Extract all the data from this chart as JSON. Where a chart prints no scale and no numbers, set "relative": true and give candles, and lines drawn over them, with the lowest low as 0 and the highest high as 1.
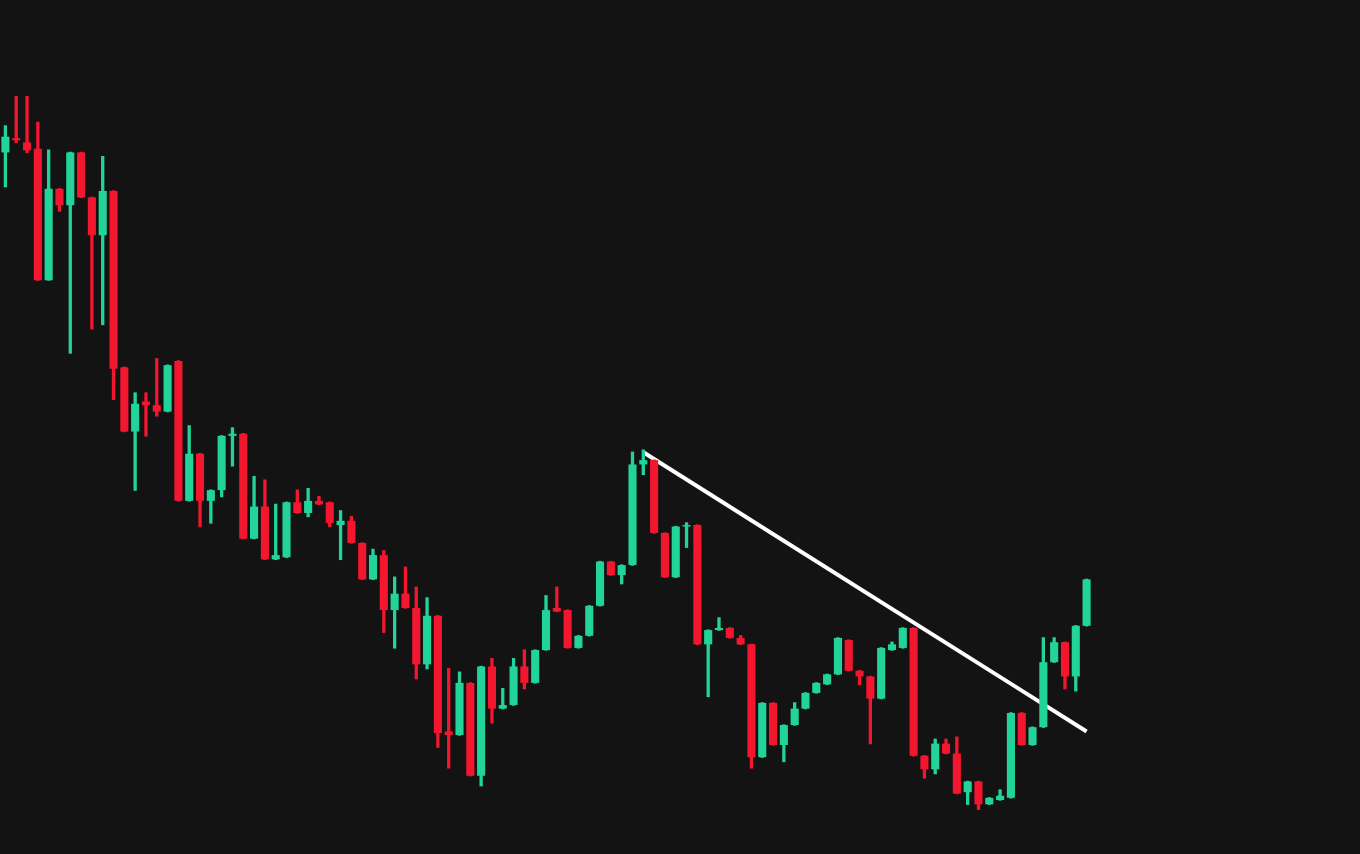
{
  "chart_data": {
    "type": "candlestick",
    "relative": true,
    "legend": false,
    "tick_labels": false,
    "categories": [
      null,
      null,
      null,
      null,
      null,
      null,
      null,
      null,
      null,
      null,
      null,
      null,
      null,
      null,
      null,
      null,
      null,
      null,
      null,
      null,
      null,
      null,
      null,
      null,
      null,
      null,
      null,
      null,
      null,
      null,
      null,
      null,
      null,
      null,
      null,
      null,
      null,
      null,
      null,
      null,
      null,
      null,
      null,
      null,
      null,
      null,
      null,
      null,
      null,
      null,
      null,
      null,
      null,
      null,
      null,
      null,
      null,
      null,
      null,
      null,
      null,
      null,
      null,
      null,
      null,
      null,
      null,
      null,
      null,
      null,
      null,
      null,
      null,
      null,
      null,
      null,
      null,
      null,
      null,
      null,
      null,
      null,
      null,
      null,
      null,
      null,
      null,
      null,
      null,
      null,
      null,
      null,
      null,
      null,
      null,
      null,
      null,
      null,
      null,
      null,
      null
    ],
    "ohlc": [
      [
        0.921,
        0.958,
        0.873,
        0.943
      ],
      [
        0.941,
        1.0,
        0.935,
        0.938
      ],
      [
        0.935,
        1.0,
        0.921,
        0.924
      ],
      [
        0.926,
        0.963,
        0.742,
        0.742
      ],
      [
        0.742,
        0.924,
        0.742,
        0.87
      ],
      [
        0.87,
        0.87,
        0.839,
        0.847
      ],
      [
        0.847,
        0.921,
        0.64,
        0.921
      ],
      [
        0.921,
        0.921,
        0.858,
        0.858
      ],
      [
        0.858,
        0.858,
        0.674,
        0.805
      ],
      [
        0.805,
        0.915,
        0.68,
        0.867
      ],
      [
        0.867,
        0.867,
        0.575,
        0.618
      ],
      [
        0.62,
        0.62,
        0.53,
        0.53
      ],
      [
        0.53,
        0.584,
        0.448,
        0.569
      ],
      [
        0.572,
        0.584,
        0.524,
        0.567
      ],
      [
        0.567,
        0.632,
        0.552,
        0.558
      ],
      [
        0.558,
        0.623,
        0.558,
        0.623
      ],
      [
        0.629,
        0.629,
        0.433,
        0.433
      ],
      [
        0.433,
        0.538,
        0.433,
        0.499
      ],
      [
        0.499,
        0.499,
        0.397,
        0.433
      ],
      [
        0.433,
        0.448,
        0.402,
        0.448
      ],
      [
        0.448,
        0.524,
        0.439,
        0.524
      ],
      [
        0.524,
        0.535,
        0.482,
        0.527
      ],
      [
        0.527,
        0.527,
        0.38,
        0.38
      ],
      [
        0.38,
        0.467,
        0.38,
        0.425
      ],
      [
        0.425,
        0.462,
        0.351,
        0.351
      ],
      [
        0.351,
        0.428,
        0.351,
        0.357
      ],
      [
        0.354,
        0.431,
        0.354,
        0.431
      ],
      [
        0.431,
        0.448,
        0.416,
        0.416
      ],
      [
        0.416,
        0.45,
        0.411,
        0.433
      ],
      [
        0.433,
        0.439,
        0.428,
        0.428
      ],
      [
        0.431,
        0.431,
        0.397,
        0.402
      ],
      [
        0.399,
        0.419,
        0.351,
        0.405
      ],
      [
        0.405,
        0.411,
        0.374,
        0.374
      ],
      [
        0.374,
        0.374,
        0.323,
        0.323
      ],
      [
        0.323,
        0.365,
        0.323,
        0.357
      ],
      [
        0.357,
        0.363,
        0.249,
        0.28
      ],
      [
        0.28,
        0.326,
        0.227,
        0.303
      ],
      [
        0.303,
        0.34,
        0.283,
        0.283
      ],
      [
        0.283,
        0.312,
        0.184,
        0.204
      ],
      [
        0.204,
        0.297,
        0.198,
        0.272
      ],
      [
        0.272,
        0.272,
        0.088,
        0.108
      ],
      [
        0.11,
        0.198,
        0.059,
        0.105
      ],
      [
        0.105,
        0.193,
        0.105,
        0.178
      ],
      [
        0.178,
        0.178,
        0.048,
        0.048
      ],
      [
        0.048,
        0.201,
        0.034,
        0.201
      ],
      [
        0.201,
        0.212,
        0.122,
        0.142
      ],
      [
        0.142,
        0.17,
        0.142,
        0.147
      ],
      [
        0.147,
        0.212,
        0.147,
        0.201
      ],
      [
        0.201,
        0.224,
        0.17,
        0.178
      ],
      [
        0.178,
        0.224,
        0.178,
        0.224
      ],
      [
        0.224,
        0.3,
        0.224,
        0.28
      ],
      [
        0.283,
        0.312,
        0.278,
        0.278
      ],
      [
        0.28,
        0.28,
        0.227,
        0.227
      ],
      [
        0.227,
        0.244,
        0.227,
        0.244
      ],
      [
        0.244,
        0.286,
        0.244,
        0.286
      ],
      [
        0.286,
        0.348,
        0.286,
        0.348
      ],
      [
        0.348,
        0.348,
        0.329,
        0.329
      ],
      [
        0.329,
        0.343,
        0.317,
        0.343
      ],
      [
        0.343,
        0.501,
        0.343,
        0.484
      ],
      [
        0.484,
        0.504,
        0.47,
        0.49
      ],
      [
        0.49,
        0.49,
        0.388,
        0.388
      ],
      [
        0.388,
        0.388,
        0.326,
        0.326
      ],
      [
        0.326,
        0.397,
        0.326,
        0.397
      ],
      [
        0.397,
        0.402,
        0.368,
        0.399
      ],
      [
        0.399,
        0.399,
        0.232,
        0.232
      ],
      [
        0.232,
        0.252,
        0.159,
        0.252
      ],
      [
        0.252,
        0.269,
        0.252,
        0.255
      ],
      [
        0.255,
        0.255,
        0.241,
        0.241
      ],
      [
        0.241,
        0.244,
        0.232,
        0.232
      ],
      [
        0.232,
        0.232,
        0.059,
        0.074
      ],
      [
        0.074,
        0.15,
        0.074,
        0.15
      ],
      [
        0.15,
        0.15,
        0.091,
        0.091
      ],
      [
        0.091,
        0.119,
        0.068,
        0.119
      ],
      [
        0.119,
        0.15,
        0.119,
        0.142
      ],
      [
        0.142,
        0.164,
        0.142,
        0.164
      ],
      [
        0.164,
        0.178,
        0.164,
        0.178
      ],
      [
        0.176,
        0.19,
        0.176,
        0.19
      ],
      [
        0.19,
        0.241,
        0.19,
        0.241
      ],
      [
        0.238,
        0.238,
        0.195,
        0.195
      ],
      [
        0.195,
        0.195,
        0.176,
        0.187
      ],
      [
        0.187,
        0.187,
        0.093,
        0.156
      ],
      [
        0.156,
        0.227,
        0.156,
        0.227
      ],
      [
        0.224,
        0.235,
        0.224,
        0.232
      ],
      [
        0.227,
        0.255,
        0.227,
        0.255
      ],
      [
        0.255,
        0.255,
        0.076,
        0.076
      ],
      [
        0.076,
        0.076,
        0.045,
        0.057
      ],
      [
        0.057,
        0.099,
        0.051,
        0.093
      ],
      [
        0.093,
        0.099,
        0.079,
        0.079
      ],
      [
        0.079,
        0.102,
        0.023,
        0.023
      ],
      [
        0.025,
        0.04,
        0.008,
        0.04
      ],
      [
        0.04,
        0.04,
        0.0,
        0.008
      ],
      [
        0.008,
        0.017,
        0.008,
        0.017
      ],
      [
        0.014,
        0.028,
        0.014,
        0.02
      ],
      [
        0.017,
        0.136,
        0.017,
        0.136
      ],
      [
        0.136,
        0.136,
        0.091,
        0.091
      ],
      [
        0.091,
        0.116,
        0.091,
        0.116
      ],
      [
        0.116,
        0.241,
        0.116,
        0.207
      ],
      [
        0.207,
        0.241,
        0.207,
        0.235
      ],
      [
        0.235,
        0.235,
        0.17,
        0.187
      ],
      [
        0.187,
        0.258,
        0.167,
        0.258
      ],
      [
        0.258,
        0.323,
        0.258,
        0.323
      ]
    ],
    "series": [
      {
        "type": "line",
        "color": "#ffffff",
        "values": [
          null,
          null,
          null,
          null,
          null,
          null,
          null,
          null,
          null,
          null,
          null,
          null,
          null,
          null,
          null,
          null,
          null,
          null,
          null,
          null,
          null,
          null,
          null,
          null,
          null,
          null,
          null,
          null,
          null,
          null,
          null,
          null,
          null,
          null,
          null,
          null,
          null,
          null,
          null,
          null,
          null,
          null,
          null,
          null,
          null,
          null,
          null,
          null,
          null,
          null,
          null,
          null,
          null,
          null,
          null,
          null,
          null,
          null,
          null,
          0.501,
          null,
          null,
          null,
          null,
          null,
          null,
          null,
          null,
          null,
          null,
          null,
          null,
          null,
          null,
          null,
          null,
          null,
          null,
          null,
          null,
          null,
          null,
          null,
          null,
          null,
          null,
          null,
          null,
          null,
          null,
          null,
          null,
          null,
          null,
          null,
          null,
          null,
          null,
          null,
          null,
          0.11
        ]
      }
    ]
  }
}
